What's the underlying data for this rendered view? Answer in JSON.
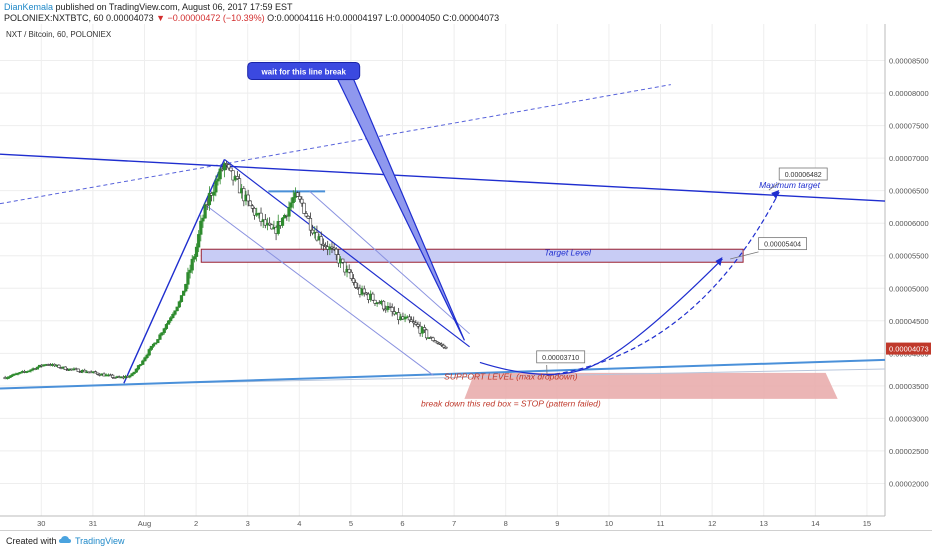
{
  "header": {
    "author": "DianKemala",
    "published": "published on TradingView.com, August 06, 2017 17:59 EST",
    "symbol": "POLONIEX:NXTBTC, 60",
    "last": "0.00004073",
    "change": "▼ −0.00000472 (−10.39%)",
    "ohlc": "O:0.00004116 H:0.00004197 L:0.00004050 C:0.00004073"
  },
  "footer": {
    "created_with": "Created with",
    "brand": "TradingView"
  },
  "colors": {
    "blue_line": "#1f2ecf",
    "support_line": "#4a90d9",
    "bull": "#2e8b2e",
    "bear": "#333333",
    "target_box_fill": "#c8ccf5",
    "target_box_border": "#9a2030",
    "stop_box": "#e8a8a8",
    "stop_text": "#c0392b",
    "last_price_tag": "#c0392b"
  },
  "chart_data": {
    "type": "candlestick",
    "title": "NXT / Bitcoin, 60, POLONIEX",
    "xlabel": "",
    "ylabel": "",
    "x_ticks": [
      "30",
      "31",
      "Aug",
      "2",
      "3",
      "4",
      "5",
      "6",
      "7",
      "8",
      "9",
      "10",
      "11",
      "12",
      "13",
      "14",
      "15"
    ],
    "x_range_days": [
      -1.8,
      15.35
    ],
    "y_ticks": [
      "0.00002000",
      "0.00002500",
      "0.00003000",
      "0.00003500",
      "0.00004000",
      "0.00004500",
      "0.00005000",
      "0.00005500",
      "0.00006000",
      "0.00006500",
      "0.00007000",
      "0.00007500",
      "0.00008000",
      "0.00008500"
    ],
    "ylim": [
      1.5e-05,
      9e-05
    ],
    "last_price_label": "0.00004073",
    "price_path": [
      [
        -1.7,
        3.63e-05
      ],
      [
        -1.3,
        3.72e-05
      ],
      [
        -0.9,
        3.84e-05
      ],
      [
        -0.5,
        3.76e-05
      ],
      [
        -0.1,
        3.72e-05
      ],
      [
        0.2,
        3.67e-05
      ],
      [
        0.5,
        3.62e-05
      ],
      [
        0.75,
        3.66e-05
      ],
      [
        0.9,
        3.82e-05
      ],
      [
        1.1,
        4.05e-05
      ],
      [
        1.3,
        4.28e-05
      ],
      [
        1.5,
        4.55e-05
      ],
      [
        1.7,
        4.82e-05
      ],
      [
        1.85,
        5.2e-05
      ],
      [
        2.0,
        5.6e-05
      ],
      [
        2.1,
        6e-05
      ],
      [
        2.25,
        6.4e-05
      ],
      [
        2.4,
        6.65e-05
      ],
      [
        2.55,
        6.9e-05
      ],
      [
        2.65,
        6.75e-05
      ],
      [
        2.8,
        6.6e-05
      ],
      [
        3.0,
        6.3e-05
      ],
      [
        3.15,
        6.15e-05
      ],
      [
        3.3,
        6e-05
      ],
      [
        3.5,
        5.85e-05
      ],
      [
        3.7,
        6.1e-05
      ],
      [
        3.9,
        6.4e-05
      ],
      [
        4.05,
        6.3e-05
      ],
      [
        4.2,
        6e-05
      ],
      [
        4.4,
        5.75e-05
      ],
      [
        4.6,
        5.6e-05
      ],
      [
        4.8,
        5.4e-05
      ],
      [
        5.0,
        5.15e-05
      ],
      [
        5.15,
        4.95e-05
      ],
      [
        5.3,
        4.9e-05
      ],
      [
        5.5,
        4.8e-05
      ],
      [
        5.7,
        4.7e-05
      ],
      [
        5.9,
        4.55e-05
      ],
      [
        6.1,
        4.5e-05
      ],
      [
        6.3,
        4.4e-05
      ],
      [
        6.5,
        4.25e-05
      ],
      [
        6.7,
        4.15e-05
      ],
      [
        6.85,
        4.07e-05
      ]
    ],
    "annotations": [
      {
        "type": "callout",
        "text": "wait for this line break",
        "x": 3.0,
        "y": 8.47e-05,
        "tip": [
          7.2,
          4.2e-05
        ]
      },
      {
        "type": "label",
        "text": "Maximum target",
        "x": 13.5,
        "y": 6.54e-05
      },
      {
        "type": "label",
        "text": "Target Level",
        "x": 9.2,
        "y": 5.5e-05
      },
      {
        "type": "price_tag",
        "text": "0.00006482",
        "x": 13.3,
        "y": 6.71e-05
      },
      {
        "type": "price_tag",
        "text": "0.00005404",
        "x": 12.9,
        "y": 5.64e-05
      },
      {
        "type": "price_tag",
        "text": "0.00003710",
        "x": 8.6,
        "y": 3.9e-05
      },
      {
        "type": "label",
        "text": "SUPPORT LEVEL (max dropdown)",
        "x": 8.1,
        "y": 3.6e-05
      },
      {
        "type": "label",
        "text": "break down this red box = STOP (pattern failed)",
        "x": 8.1,
        "y": 3.18e-05
      }
    ],
    "drawings": {
      "resistance_line": [
        [
          -1.8,
          7.06e-05
        ],
        [
          15.35,
          6.34e-05
        ]
      ],
      "dashed_trend": [
        [
          -1.8,
          6.3e-05
        ],
        [
          11.2,
          8.13e-05
        ]
      ],
      "support_line": [
        [
          -1.8,
          3.46e-05
        ],
        [
          15.35,
          3.9e-05
        ]
      ],
      "support_line_faint": [
        [
          2.0,
          3.55e-05
        ],
        [
          15.35,
          3.76e-05
        ]
      ],
      "impulse": [
        [
          0.6,
          3.54e-05
        ],
        [
          2.55,
          6.98e-05
        ]
      ],
      "horizontal_mark": [
        [
          3.4,
          6.49e-05
        ],
        [
          4.5,
          6.49e-05
        ]
      ],
      "channel_upper": [
        [
          2.55,
          6.98e-05
        ],
        [
          7.3,
          4.1e-05
        ]
      ],
      "channel_middle": [
        [
          4.2,
          6.49e-05
        ],
        [
          7.3,
          4.3e-05
        ]
      ],
      "channel_lower": [
        [
          2.2,
          6.27e-05
        ],
        [
          6.6,
          3.66e-05
        ]
      ],
      "target_box": [
        [
          2.1,
          5.6e-05
        ],
        [
          12.6,
          5.4e-05
        ]
      ],
      "stop_box": [
        [
          7.2,
          3.7e-05
        ],
        [
          14.2,
          3.3e-05
        ]
      ],
      "projection_curve": [
        [
          7.5,
          3.86e-05
        ],
        [
          8.8,
          3.66e-05
        ],
        [
          11.2,
          4.2e-05
        ],
        [
          12.2,
          5.45e-05
        ]
      ],
      "projection_curve_2": [
        [
          8.8,
          3.66e-05
        ],
        [
          11.0,
          4e-05
        ],
        [
          12.4,
          5.02e-05
        ],
        [
          13.3,
          6.48e-05
        ]
      ]
    }
  }
}
